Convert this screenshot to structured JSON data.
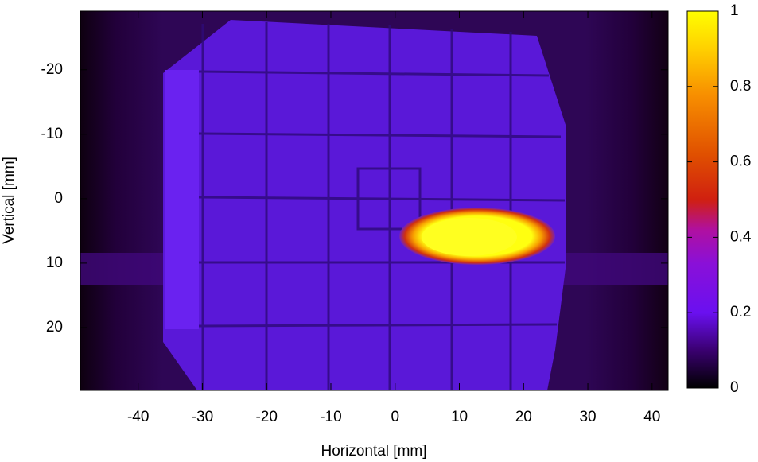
{
  "chart_data": {
    "type": "heatmap",
    "xlabel": "Horizontal [mm]",
    "ylabel": "Vertical [mm]",
    "xlim": [
      -49,
      42.5
    ],
    "xticks": [
      -40,
      -30,
      -20,
      -10,
      0,
      10,
      20,
      30,
      40
    ],
    "ylim": [
      29.75,
      -29.1
    ],
    "yticks": [
      -20,
      -10,
      0,
      10,
      20
    ],
    "colorbar": {
      "lim": [
        0,
        1
      ],
      "ticks": [
        0,
        0.2,
        0.4,
        0.6,
        0.8,
        1
      ]
    }
  }
}
